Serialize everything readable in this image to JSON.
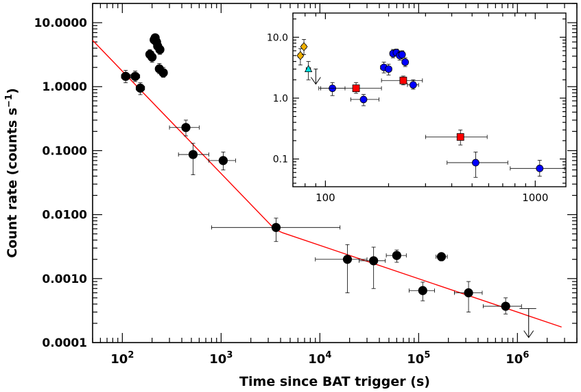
{
  "chart_data": [
    {
      "type": "scatter",
      "panel": "main",
      "title": "",
      "xlabel": "Time since BAT trigger (s)",
      "ylabel_main": "Count rate (counts s",
      "ylabel_sup": "−1",
      "ylabel_close": ")",
      "xscale": "log",
      "yscale": "log",
      "xlim": [
        50,
        4000000
      ],
      "ylim": [
        0.0001,
        20
      ],
      "x_tick_labels": [
        {
          "value": 100,
          "mant": "10",
          "exp": "2"
        },
        {
          "value": 1000,
          "mant": "10",
          "exp": "3"
        },
        {
          "value": 10000,
          "mant": "10",
          "exp": "4"
        },
        {
          "value": 100000,
          "mant": "10",
          "exp": "5"
        },
        {
          "value": 1000000,
          "mant": "10",
          "exp": "6"
        }
      ],
      "y_tick_labels": [
        {
          "value": 10,
          "label": "10.0000"
        },
        {
          "value": 1,
          "label": "1.0000"
        },
        {
          "value": 0.1,
          "label": "0.1000"
        },
        {
          "value": 0.01,
          "label": "0.0100"
        },
        {
          "value": 0.001,
          "label": "0.0010"
        },
        {
          "value": 0.0001,
          "label": "0.0001"
        }
      ],
      "series": [
        {
          "color": "#000000",
          "marker": "circle",
          "points": [
            {
              "x": 108,
              "y": 1.45,
              "xlo": 98,
              "xhi": 120,
              "ylo": 1.15,
              "yhi": 1.8
            },
            {
              "x": 135,
              "y": 1.45,
              "xlo": 122,
              "xhi": 150,
              "ylo": 1.2,
              "yhi": 1.75
            },
            {
              "x": 152,
              "y": 0.95,
              "xlo": 138,
              "xhi": 168,
              "ylo": 0.75,
              "yhi": 1.15
            },
            {
              "x": 190,
              "y": 3.2,
              "xlo": 183,
              "xhi": 197,
              "ylo": 2.7,
              "yhi": 3.8
            },
            {
              "x": 200,
              "y": 2.9,
              "xlo": 193,
              "xhi": 207,
              "ylo": 2.4,
              "yhi": 3.5
            },
            {
              "x": 210,
              "y": 5.4,
              "xlo": 203,
              "xhi": 217,
              "ylo": 4.7,
              "yhi": 6.2
            },
            {
              "x": 215,
              "y": 5.8,
              "xlo": 208,
              "xhi": 222,
              "ylo": 5.1,
              "yhi": 6.5
            },
            {
              "x": 222,
              "y": 5.0,
              "xlo": 215,
              "xhi": 229,
              "ylo": 4.3,
              "yhi": 5.8
            },
            {
              "x": 228,
              "y": 4.3,
              "xlo": 220,
              "xhi": 236,
              "ylo": 3.6,
              "yhi": 5.1
            },
            {
              "x": 240,
              "y": 3.8,
              "xlo": 232,
              "xhi": 248,
              "ylo": 3.2,
              "yhi": 4.5
            },
            {
              "x": 237,
              "y": 1.9,
              "xlo": 228,
              "xhi": 246,
              "ylo": 1.6,
              "yhi": 2.3
            },
            {
              "x": 260,
              "y": 1.65,
              "xlo": 248,
              "xhi": 272,
              "ylo": 1.4,
              "yhi": 2.0
            },
            {
              "x": 440,
              "y": 0.23,
              "xlo": 300,
              "xhi": 600,
              "ylo": 0.17,
              "yhi": 0.3
            },
            {
              "x": 520,
              "y": 0.087,
              "xlo": 370,
              "xhi": 750,
              "ylo": 0.042,
              "yhi": 0.13
            },
            {
              "x": 1050,
              "y": 0.07,
              "xlo": 750,
              "xhi": 1400,
              "ylo": 0.05,
              "yhi": 0.095
            },
            {
              "x": 3600,
              "y": 0.0063,
              "xlo": 800,
              "xhi": 16000,
              "ylo": 0.0038,
              "yhi": 0.0088
            },
            {
              "x": 19000,
              "y": 0.002,
              "xlo": 9000,
              "xhi": 30000,
              "ylo": 0.0006,
              "yhi": 0.0034
            },
            {
              "x": 35000,
              "y": 0.0019,
              "xlo": 25000,
              "xhi": 46000,
              "ylo": 0.0007,
              "yhi": 0.0031
            },
            {
              "x": 60000,
              "y": 0.0023,
              "xlo": 47000,
              "xhi": 75000,
              "ylo": 0.0018,
              "yhi": 0.0028
            },
            {
              "x": 170000,
              "y": 0.0022,
              "xlo": 150000,
              "xhi": 195000,
              "ylo": 0.0019,
              "yhi": 0.0025
            },
            {
              "x": 110000,
              "y": 0.00065,
              "xlo": 80000,
              "xhi": 145000,
              "ylo": 0.00045,
              "yhi": 0.00088
            },
            {
              "x": 320000,
              "y": 0.0006,
              "xlo": 230000,
              "xhi": 440000,
              "ylo": 0.0003,
              "yhi": 0.0009
            },
            {
              "x": 760000,
              "y": 0.00037,
              "xlo": 450000,
              "xhi": 1100000,
              "ylo": 0.00028,
              "yhi": 0.0005
            }
          ]
        }
      ],
      "upper_limits": [
        {
          "x": 1300000,
          "y": 0.00034,
          "xlo": 1050000,
          "xhi": 1550000,
          "y_end": 0.00012,
          "color": "#000000"
        }
      ],
      "fit_line": {
        "color": "#ff0000",
        "points": [
          [
            50,
            5.3
          ],
          [
            3500,
            0.0059
          ],
          [
            4200,
            0.0052
          ],
          [
            2800000,
            0.000175
          ]
        ]
      }
    },
    {
      "type": "scatter",
      "panel": "inset",
      "title": "",
      "xscale": "log",
      "yscale": "log",
      "xlim": [
        70,
        1400
      ],
      "ylim": [
        0.035,
        25
      ],
      "x_tick_labels": [
        {
          "value": 100,
          "label": "100"
        },
        {
          "value": 1000,
          "label": "1000"
        }
      ],
      "y_tick_labels": [
        {
          "value": 10,
          "label": "10.0"
        },
        {
          "value": 1,
          "label": "1.0"
        },
        {
          "value": 0.1,
          "label": "0.1"
        }
      ],
      "series": [
        {
          "color": "#f0b000",
          "marker": "diamond",
          "points": [
            {
              "x": 76,
              "y": 5.0,
              "xlo": 74,
              "xhi": 78,
              "ylo": 3.5,
              "yhi": 6.5
            },
            {
              "x": 79,
              "y": 7.0,
              "xlo": 77,
              "xhi": 81,
              "ylo": 5.2,
              "yhi": 9.2
            }
          ]
        },
        {
          "color": "#00e0e0",
          "marker": "triangle",
          "points": [
            {
              "x": 83,
              "y": 3.0,
              "xlo": 81,
              "xhi": 85,
              "ylo": 2.0,
              "yhi": 4.0
            }
          ]
        },
        {
          "color": "#0000ff",
          "marker": "circle",
          "points": [
            {
              "x": 108,
              "y": 1.45,
              "xlo": 93,
              "xhi": 124,
              "ylo": 1.1,
              "yhi": 1.8
            },
            {
              "x": 152,
              "y": 0.95,
              "xlo": 132,
              "xhi": 180,
              "ylo": 0.75,
              "yhi": 1.15
            },
            {
              "x": 190,
              "y": 3.2,
              "xlo": 183,
              "xhi": 197,
              "ylo": 2.6,
              "yhi": 3.9
            },
            {
              "x": 200,
              "y": 3.0,
              "xlo": 193,
              "xhi": 207,
              "ylo": 2.4,
              "yhi": 3.6
            },
            {
              "x": 210,
              "y": 5.4,
              "xlo": 203,
              "xhi": 217,
              "ylo": 4.6,
              "yhi": 6.3
            },
            {
              "x": 218,
              "y": 5.6,
              "xlo": 211,
              "xhi": 225,
              "ylo": 4.9,
              "yhi": 6.4
            },
            {
              "x": 226,
              "y": 5.0,
              "xlo": 219,
              "xhi": 233,
              "ylo": 4.2,
              "yhi": 5.8
            },
            {
              "x": 232,
              "y": 5.2,
              "xlo": 225,
              "xhi": 239,
              "ylo": 4.4,
              "yhi": 6.0
            },
            {
              "x": 240,
              "y": 3.9,
              "xlo": 232,
              "xhi": 248,
              "ylo": 3.3,
              "yhi": 4.6
            },
            {
              "x": 262,
              "y": 1.65,
              "xlo": 246,
              "xhi": 278,
              "ylo": 1.4,
              "yhi": 2.0
            },
            {
              "x": 520,
              "y": 0.087,
              "xlo": 380,
              "xhi": 740,
              "ylo": 0.05,
              "yhi": 0.13
            },
            {
              "x": 1050,
              "y": 0.07,
              "xlo": 760,
              "xhi": 1380,
              "ylo": 0.052,
              "yhi": 0.095
            }
          ]
        },
        {
          "color": "#ff0000",
          "marker": "square",
          "points": [
            {
              "x": 140,
              "y": 1.45,
              "xlo": 95,
              "xhi": 185,
              "ylo": 1.2,
              "yhi": 1.8
            },
            {
              "x": 235,
              "y": 1.95,
              "xlo": 185,
              "xhi": 290,
              "ylo": 1.65,
              "yhi": 2.3
            },
            {
              "x": 440,
              "y": 0.23,
              "xlo": 300,
              "xhi": 590,
              "ylo": 0.17,
              "yhi": 0.3
            }
          ]
        }
      ],
      "upper_limits": [
        {
          "x": 90,
          "y": 3.0,
          "xlo": 88,
          "xhi": 92,
          "y_end": 1.7,
          "color": "#000000"
        }
      ]
    }
  ]
}
